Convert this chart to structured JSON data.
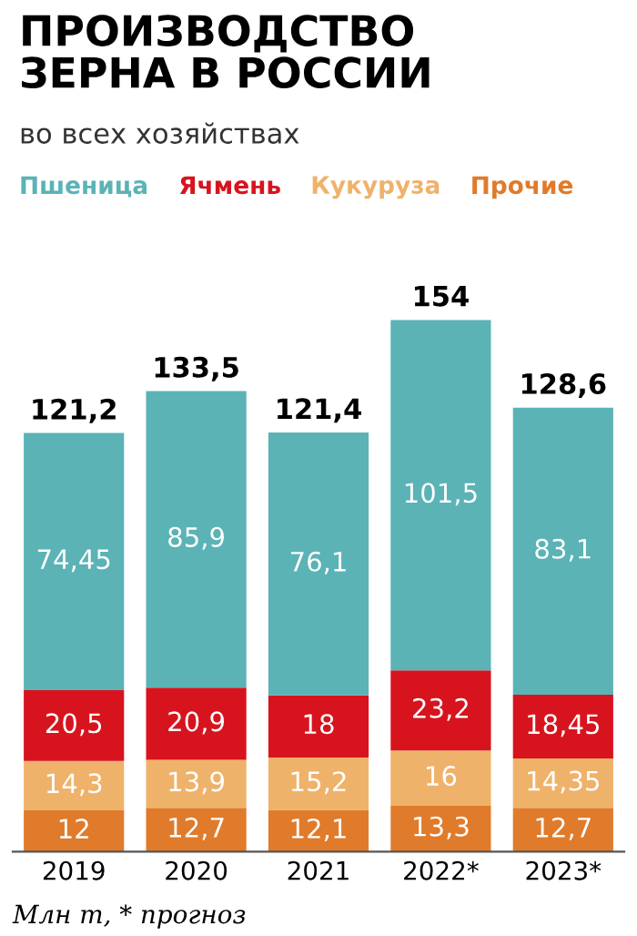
{
  "chart_data": {
    "type": "bar",
    "title": "ПРОИЗВОДСТВО\nЗЕРНА В РОССИИ",
    "subtitle": "во всех хозяйствах",
    "categories": [
      "2019",
      "2020",
      "2021",
      "2022*",
      "2023*"
    ],
    "stacked": true,
    "data_labels": true,
    "legend": "top",
    "tick_labels": "x",
    "grid": false,
    "series": [
      {
        "name": "Прочие",
        "color": "#e07b2b",
        "values": [
          12,
          12.7,
          12.1,
          13.3,
          12.7
        ],
        "value_labels": [
          "12",
          "12,7",
          "12,1",
          "13,3",
          "12,7"
        ]
      },
      {
        "name": "Кукуруза",
        "color": "#efb26a",
        "values": [
          14.3,
          13.9,
          15.2,
          16,
          14.35
        ],
        "value_labels": [
          "14,3",
          "13,9",
          "15,2",
          "16",
          "14,35"
        ]
      },
      {
        "name": "Ячмень",
        "color": "#d7141e",
        "values": [
          20.5,
          20.9,
          18,
          23.2,
          18.45
        ],
        "value_labels": [
          "20,5",
          "20,9",
          "18",
          "23,2",
          "18,45"
        ]
      },
      {
        "name": "Пшеница",
        "color": "#5bb3b6",
        "values": [
          74.45,
          85.9,
          76.1,
          101.5,
          83.1
        ],
        "value_labels": [
          "74,45",
          "85,9",
          "76,1",
          "101,5",
          "83,1"
        ]
      }
    ],
    "totals": [
      "121,2",
      "133,5",
      "121,4",
      "154",
      "128,6"
    ],
    "annotations": [
      "Млн т, * прогноз"
    ]
  }
}
